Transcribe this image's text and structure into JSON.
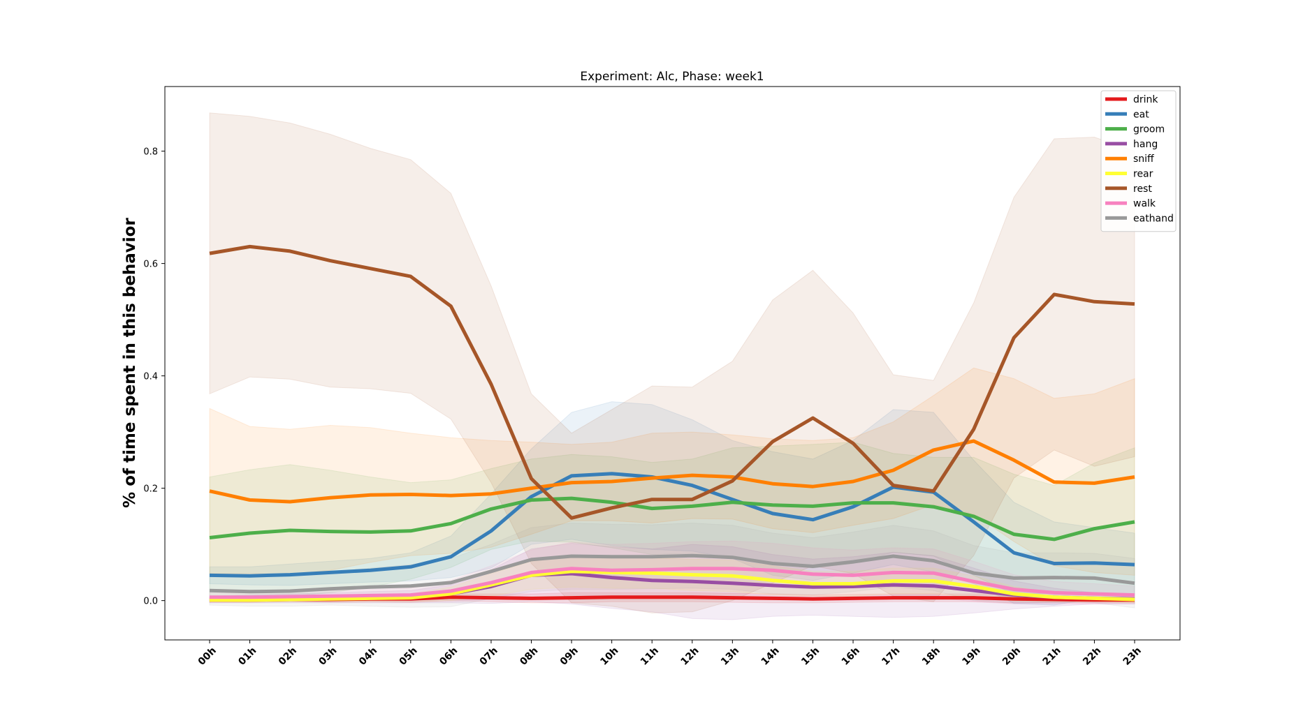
{
  "chart_data": {
    "type": "line",
    "title": "Experiment: Alc, Phase: week1",
    "xlabel": "",
    "ylabel": "% of time spent in this behavior",
    "ylim": [
      -0.07,
      0.915
    ],
    "yticks": [
      "0.0",
      "0.2",
      "0.4",
      "0.6",
      "0.8"
    ],
    "ytick_values": [
      0.0,
      0.2,
      0.4,
      0.6,
      0.8
    ],
    "x": [
      "00h",
      "01h",
      "02h",
      "03h",
      "04h",
      "05h",
      "06h",
      "07h",
      "08h",
      "09h",
      "10h",
      "11h",
      "12h",
      "13h",
      "14h",
      "15h",
      "16h",
      "17h",
      "18h",
      "19h",
      "20h",
      "21h",
      "22h",
      "23h"
    ],
    "legend_position": "top-right",
    "grid": false,
    "series": [
      {
        "name": "drink",
        "color": "#e41a1c",
        "values": [
          0.001,
          0.001,
          0.002,
          0.002,
          0.003,
          0.003,
          0.006,
          0.005,
          0.004,
          0.005,
          0.006,
          0.006,
          0.006,
          0.005,
          0.004,
          0.003,
          0.004,
          0.005,
          0.005,
          0.005,
          0.003,
          0.002,
          0.001,
          0.001
        ],
        "upper": [
          0.005,
          0.005,
          0.006,
          0.007,
          0.008,
          0.009,
          0.012,
          0.012,
          0.012,
          0.014,
          0.014,
          0.014,
          0.014,
          0.013,
          0.012,
          0.01,
          0.011,
          0.012,
          0.012,
          0.012,
          0.01,
          0.008,
          0.006,
          0.006
        ],
        "lower": [
          -0.003,
          -0.003,
          -0.002,
          -0.003,
          -0.002,
          -0.003,
          0.0,
          -0.002,
          -0.004,
          -0.004,
          -0.002,
          -0.002,
          -0.002,
          -0.003,
          -0.004,
          -0.004,
          -0.003,
          -0.002,
          -0.002,
          -0.002,
          -0.004,
          -0.004,
          -0.004,
          -0.004
        ]
      },
      {
        "name": "eat",
        "color": "#377eb8",
        "values": [
          0.045,
          0.044,
          0.046,
          0.05,
          0.054,
          0.06,
          0.078,
          0.124,
          0.185,
          0.222,
          0.226,
          0.22,
          0.205,
          0.18,
          0.155,
          0.144,
          0.167,
          0.202,
          0.193,
          0.14,
          0.085,
          0.066,
          0.067,
          0.064
        ],
        "upper": [
          0.06,
          0.06,
          0.065,
          0.07,
          0.075,
          0.085,
          0.115,
          0.19,
          0.27,
          0.335,
          0.354,
          0.349,
          0.322,
          0.285,
          0.265,
          0.252,
          0.285,
          0.34,
          0.335,
          0.25,
          0.175,
          0.14,
          0.13,
          0.12
        ],
        "lower": [
          0.03,
          0.028,
          0.027,
          0.03,
          0.033,
          0.035,
          0.041,
          0.058,
          0.1,
          0.109,
          0.098,
          0.091,
          0.088,
          0.075,
          0.045,
          0.036,
          0.049,
          0.064,
          0.051,
          0.03,
          -0.005,
          -0.008,
          0.004,
          0.008
        ]
      },
      {
        "name": "groom",
        "color": "#4daf4a",
        "values": [
          0.112,
          0.12,
          0.125,
          0.123,
          0.122,
          0.124,
          0.137,
          0.163,
          0.179,
          0.182,
          0.175,
          0.164,
          0.168,
          0.175,
          0.17,
          0.168,
          0.174,
          0.174,
          0.167,
          0.15,
          0.118,
          0.109,
          0.128,
          0.14
        ],
        "upper": [
          0.22,
          0.233,
          0.242,
          0.232,
          0.22,
          0.21,
          0.215,
          0.235,
          0.252,
          0.26,
          0.256,
          0.246,
          0.252,
          0.272,
          0.275,
          0.278,
          0.282,
          0.262,
          0.255,
          0.255,
          0.225,
          0.205,
          0.245,
          0.272
        ],
        "lower": [
          0.004,
          0.007,
          0.008,
          0.014,
          0.024,
          0.038,
          0.059,
          0.091,
          0.106,
          0.104,
          0.094,
          0.082,
          0.084,
          0.078,
          0.065,
          0.058,
          0.066,
          0.086,
          0.079,
          0.045,
          0.011,
          0.013,
          0.011,
          0.008
        ]
      },
      {
        "name": "hang",
        "color": "#984ea3",
        "values": [
          0.002,
          0.003,
          0.004,
          0.005,
          0.006,
          0.007,
          0.012,
          0.025,
          0.045,
          0.048,
          0.041,
          0.036,
          0.034,
          0.031,
          0.027,
          0.024,
          0.025,
          0.028,
          0.026,
          0.018,
          0.01,
          0.006,
          0.004,
          0.003
        ],
        "upper": [
          0.008,
          0.01,
          0.012,
          0.014,
          0.016,
          0.018,
          0.028,
          0.055,
          0.092,
          0.102,
          0.096,
          0.092,
          0.1,
          0.096,
          0.082,
          0.074,
          0.078,
          0.086,
          0.08,
          0.058,
          0.035,
          0.022,
          0.014,
          0.012
        ],
        "lower": [
          -0.004,
          -0.004,
          -0.004,
          -0.004,
          -0.004,
          -0.004,
          -0.004,
          -0.005,
          -0.002,
          -0.006,
          -0.014,
          -0.02,
          -0.032,
          -0.034,
          -0.028,
          -0.026,
          -0.028,
          -0.03,
          -0.028,
          -0.022,
          -0.015,
          -0.01,
          -0.006,
          -0.006
        ]
      },
      {
        "name": "sniff",
        "color": "#ff7f00",
        "values": [
          0.195,
          0.179,
          0.176,
          0.183,
          0.188,
          0.189,
          0.187,
          0.19,
          0.2,
          0.21,
          0.212,
          0.218,
          0.223,
          0.22,
          0.208,
          0.203,
          0.212,
          0.232,
          0.268,
          0.284,
          0.25,
          0.211,
          0.209,
          0.22
        ],
        "upper": [
          0.342,
          0.31,
          0.305,
          0.312,
          0.308,
          0.298,
          0.29,
          0.285,
          0.282,
          0.278,
          0.282,
          0.298,
          0.3,
          0.295,
          0.288,
          0.285,
          0.29,
          0.318,
          0.365,
          0.414,
          0.395,
          0.36,
          0.368,
          0.395
        ],
        "lower": [
          0.048,
          0.048,
          0.047,
          0.054,
          0.068,
          0.08,
          0.084,
          0.095,
          0.118,
          0.142,
          0.142,
          0.138,
          0.146,
          0.145,
          0.128,
          0.121,
          0.134,
          0.146,
          0.171,
          0.154,
          0.105,
          0.062,
          0.05,
          0.045
        ]
      },
      {
        "name": "rear",
        "color": "#ffff33",
        "values": [
          0.001,
          0.001,
          0.002,
          0.003,
          0.004,
          0.005,
          0.012,
          0.028,
          0.045,
          0.052,
          0.05,
          0.049,
          0.046,
          0.044,
          0.036,
          0.03,
          0.03,
          0.035,
          0.035,
          0.025,
          0.012,
          0.006,
          0.004,
          0.002
        ],
        "upper": [
          0.004,
          0.005,
          0.006,
          0.008,
          0.01,
          0.012,
          0.024,
          0.048,
          0.07,
          0.08,
          0.078,
          0.076,
          0.074,
          0.072,
          0.062,
          0.052,
          0.052,
          0.058,
          0.058,
          0.044,
          0.025,
          0.014,
          0.01,
          0.008
        ],
        "lower": [
          -0.002,
          -0.003,
          -0.002,
          -0.002,
          -0.002,
          -0.002,
          0.0,
          0.008,
          0.02,
          0.024,
          0.022,
          0.022,
          0.018,
          0.016,
          0.01,
          0.008,
          0.008,
          0.012,
          0.012,
          0.006,
          -0.001,
          -0.002,
          -0.002,
          -0.004
        ]
      },
      {
        "name": "rest",
        "color": "#a65628",
        "values": [
          0.618,
          0.63,
          0.622,
          0.605,
          0.591,
          0.577,
          0.524,
          0.385,
          0.217,
          0.147,
          0.165,
          0.18,
          0.18,
          0.213,
          0.283,
          0.325,
          0.28,
          0.205,
          0.195,
          0.305,
          0.468,
          0.545,
          0.532,
          0.528
        ],
        "upper": [
          0.868,
          0.862,
          0.85,
          0.83,
          0.805,
          0.785,
          0.725,
          0.56,
          0.368,
          0.298,
          0.34,
          0.382,
          0.38,
          0.426,
          0.535,
          0.588,
          0.512,
          0.402,
          0.392,
          0.53,
          0.718,
          0.822,
          0.825,
          0.8
        ],
        "lower": [
          0.368,
          0.398,
          0.394,
          0.38,
          0.377,
          0.369,
          0.323,
          0.21,
          0.066,
          -0.004,
          -0.01,
          -0.022,
          -0.02,
          0.0,
          0.031,
          0.062,
          0.048,
          0.008,
          -0.002,
          0.08,
          0.218,
          0.268,
          0.239,
          0.256
        ]
      },
      {
        "name": "walk",
        "color": "#f781bf",
        "values": [
          0.006,
          0.006,
          0.007,
          0.008,
          0.009,
          0.01,
          0.017,
          0.032,
          0.05,
          0.057,
          0.054,
          0.055,
          0.057,
          0.057,
          0.054,
          0.047,
          0.045,
          0.05,
          0.049,
          0.034,
          0.02,
          0.014,
          0.012,
          0.01
        ],
        "upper": [
          0.014,
          0.014,
          0.016,
          0.018,
          0.02,
          0.022,
          0.036,
          0.062,
          0.09,
          0.104,
          0.1,
          0.102,
          0.105,
          0.106,
          0.102,
          0.094,
          0.09,
          0.094,
          0.092,
          0.07,
          0.046,
          0.034,
          0.03,
          0.026
        ],
        "lower": [
          -0.002,
          -0.002,
          -0.002,
          -0.002,
          -0.002,
          -0.002,
          -0.002,
          0.002,
          0.01,
          0.01,
          0.008,
          0.008,
          0.009,
          0.008,
          0.006,
          0.0,
          0.0,
          0.006,
          0.006,
          -0.002,
          -0.006,
          -0.006,
          -0.006,
          -0.006
        ]
      },
      {
        "name": "eathand",
        "color": "#999999",
        "values": [
          0.018,
          0.016,
          0.017,
          0.021,
          0.024,
          0.026,
          0.032,
          0.052,
          0.073,
          0.079,
          0.078,
          0.078,
          0.08,
          0.077,
          0.066,
          0.061,
          0.069,
          0.079,
          0.071,
          0.049,
          0.04,
          0.041,
          0.04,
          0.031
        ],
        "upper": [
          0.044,
          0.042,
          0.044,
          0.05,
          0.058,
          0.064,
          0.075,
          0.1,
          0.13,
          0.138,
          0.136,
          0.135,
          0.138,
          0.134,
          0.12,
          0.112,
          0.122,
          0.134,
          0.124,
          0.098,
          0.085,
          0.085,
          0.084,
          0.075
        ],
        "lower": [
          -0.008,
          -0.01,
          -0.01,
          -0.008,
          -0.01,
          -0.012,
          -0.011,
          0.004,
          0.016,
          0.02,
          0.02,
          0.021,
          0.022,
          0.02,
          0.012,
          0.01,
          0.016,
          0.024,
          0.018,
          0.0,
          -0.005,
          -0.003,
          -0.004,
          -0.013
        ]
      }
    ]
  }
}
